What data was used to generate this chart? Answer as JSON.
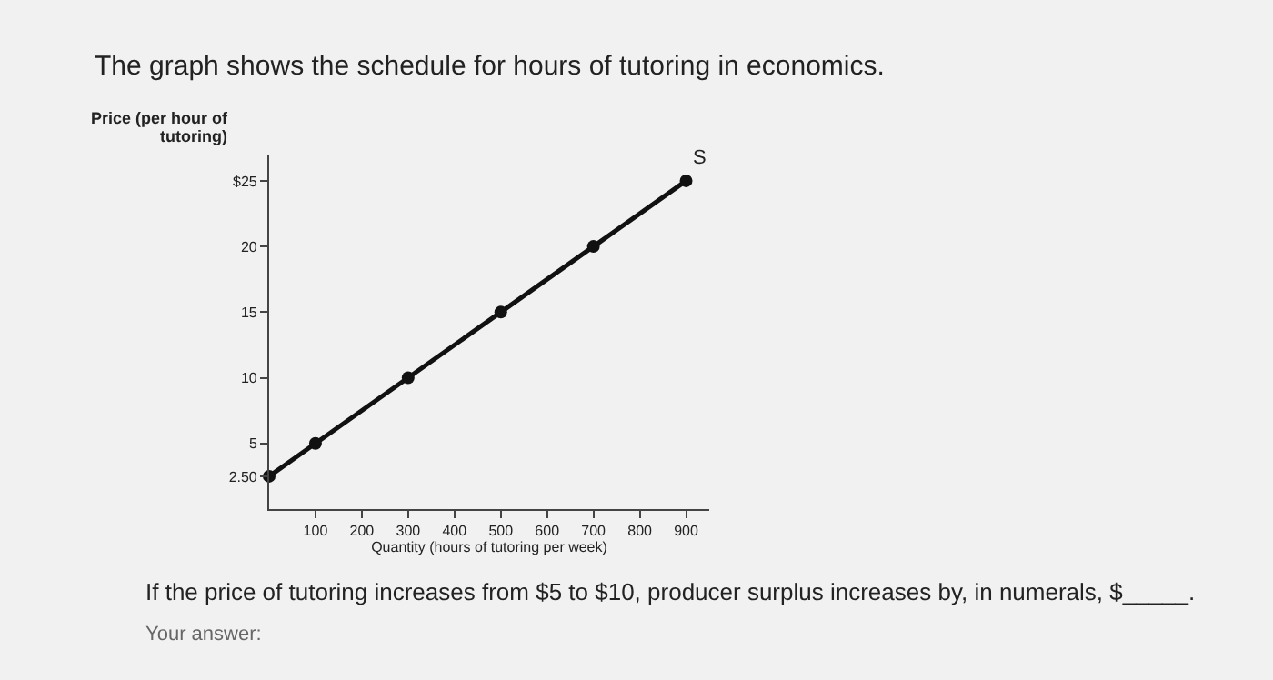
{
  "chart_data": {
    "type": "line",
    "title": "The graph shows the schedule for hours of tutoring in economics.",
    "xlabel": "Quantity (hours of tutoring per week)",
    "ylabel": "Price (per hour of tutoring)",
    "x": [
      0,
      100,
      300,
      500,
      700,
      900
    ],
    "series": [
      {
        "name": "S",
        "color": "#111111",
        "values": [
          2.5,
          5,
          10,
          15,
          20,
          25
        ]
      }
    ],
    "xlim": [
      0,
      950
    ],
    "ylim": [
      0,
      27
    ],
    "xticks": [
      100,
      200,
      300,
      400,
      500,
      600,
      700,
      800,
      900
    ],
    "yticks": [
      {
        "value": 2.5,
        "label": "2.50"
      },
      5,
      10,
      15,
      20,
      {
        "value": 25,
        "label": "$25"
      }
    ],
    "marker": "circle",
    "line_style": "solid",
    "legend": false,
    "annotations": [
      "If the price of tutoring increases from $5 to $10, producer surplus increases by, in numerals, $_____.",
      "Your answer:"
    ]
  }
}
